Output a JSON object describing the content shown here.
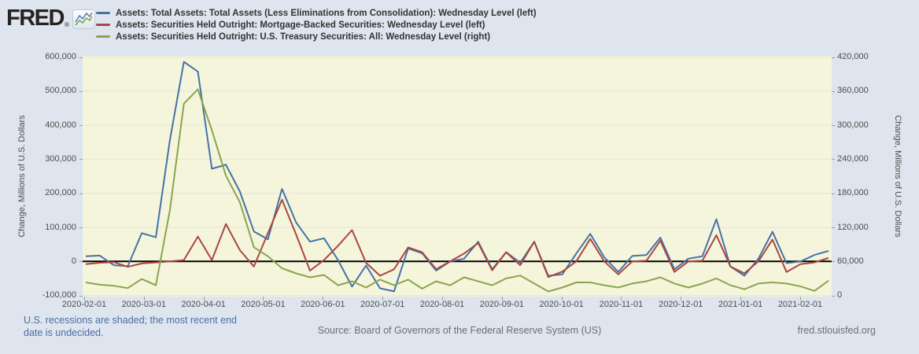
{
  "header": {
    "logo_text": "FRED",
    "registered_mark": "®",
    "legend": [
      {
        "id": "total-assets",
        "label": "Assets: Total Assets: Total Assets (Less Eliminations from Consolidation): Wednesday Level (left)",
        "color": "#4572a7"
      },
      {
        "id": "mbs",
        "label": "Assets: Securities Held Outright: Mortgage-Backed Securities: Wednesday Level (left)",
        "color": "#aa4643"
      },
      {
        "id": "treasuries",
        "label": "Assets: Securities Held Outright: U.S. Treasury Securities: All: Wednesday Level (right)",
        "color": "#89a54e"
      }
    ]
  },
  "chart_data": {
    "type": "line",
    "title": "",
    "x": [
      "2020-02-05",
      "2020-02-12",
      "2020-02-19",
      "2020-02-26",
      "2020-03-04",
      "2020-03-11",
      "2020-03-18",
      "2020-03-25",
      "2020-04-01",
      "2020-04-08",
      "2020-04-15",
      "2020-04-22",
      "2020-04-29",
      "2020-05-06",
      "2020-05-13",
      "2020-05-20",
      "2020-05-27",
      "2020-06-03",
      "2020-06-10",
      "2020-06-17",
      "2020-06-24",
      "2020-07-01",
      "2020-07-08",
      "2020-07-15",
      "2020-07-22",
      "2020-07-29",
      "2020-08-05",
      "2020-08-12",
      "2020-08-19",
      "2020-08-26",
      "2020-09-02",
      "2020-09-09",
      "2020-09-16",
      "2020-09-23",
      "2020-09-30",
      "2020-10-07",
      "2020-10-14",
      "2020-10-21",
      "2020-10-28",
      "2020-11-04",
      "2020-11-11",
      "2020-11-18",
      "2020-11-25",
      "2020-12-02",
      "2020-12-09",
      "2020-12-16",
      "2020-12-23",
      "2020-12-30",
      "2021-01-06",
      "2021-01-13",
      "2021-01-20",
      "2021-01-27",
      "2021-02-03",
      "2021-02-10"
    ],
    "series": [
      {
        "id": "total-assets",
        "name": "Assets: Total Assets: Total Assets (Less Eliminations from Consolidation): Wednesday Level",
        "axis": "left",
        "color": "#4572a7",
        "values": [
          15000,
          17000,
          -11000,
          -14000,
          83000,
          71000,
          356000,
          586000,
          557000,
          272000,
          284000,
          205000,
          88000,
          65000,
          213000,
          115000,
          58000,
          68000,
          4000,
          -74000,
          -12000,
          -79000,
          -88000,
          38000,
          24000,
          -27000,
          0,
          8000,
          58000,
          -23000,
          27000,
          -4000,
          58000,
          -42000,
          -38000,
          23000,
          81000,
          12000,
          -31000,
          16000,
          19000,
          70000,
          -23000,
          8000,
          15000,
          124000,
          -15000,
          -42000,
          8000,
          87000,
          -5000,
          0,
          19000,
          31000
        ]
      },
      {
        "id": "mbs",
        "name": "Assets: Securities Held Outright: Mortgage-Backed Securities: Wednesday Level",
        "axis": "left",
        "color": "#aa4643",
        "values": [
          -8000,
          -4000,
          -2000,
          -16000,
          -6000,
          -3000,
          0,
          4000,
          73000,
          4000,
          110000,
          33000,
          -15000,
          83000,
          181000,
          80000,
          -27000,
          4000,
          46000,
          92000,
          -4000,
          -42000,
          -23000,
          41000,
          27000,
          -23000,
          0,
          23000,
          54000,
          -26000,
          27000,
          -11000,
          58000,
          -46000,
          -30000,
          0,
          66000,
          0,
          -38000,
          0,
          2000,
          61000,
          -31000,
          0,
          2000,
          77000,
          -15000,
          -35000,
          0,
          64000,
          -31000,
          -8000,
          -3000,
          10000
        ]
      },
      {
        "id": "treasuries",
        "name": "Assets: Securities Held Outright: U.S. Treasury Securities: All: Wednesday Level",
        "axis": "right",
        "color": "#89a54e",
        "values": [
          23000,
          19000,
          17000,
          13000,
          29000,
          18000,
          150000,
          338000,
          363000,
          291000,
          211000,
          164000,
          85000,
          69000,
          48000,
          39000,
          32000,
          36000,
          18000,
          25000,
          14000,
          28000,
          18000,
          28000,
          12000,
          25000,
          18000,
          32000,
          25000,
          18000,
          30000,
          35000,
          21000,
          7000,
          14000,
          23000,
          23000,
          18000,
          14000,
          21000,
          25000,
          32000,
          21000,
          14000,
          21000,
          30000,
          18000,
          11000,
          21000,
          23000,
          21000,
          16000,
          8000,
          26000
        ]
      }
    ],
    "left_axis": {
      "label": "Change, Millions of U.S. Dollars",
      "min": -100000,
      "max": 600000,
      "ticks": [
        "600,000",
        "500,000",
        "400,000",
        "300,000",
        "200,000",
        "100,000",
        "0",
        "-100,000"
      ]
    },
    "right_axis": {
      "label": "Change, Millions of U.S. Dollars",
      "min": 0,
      "max": 420000,
      "ticks": [
        "420,000",
        "360,000",
        "300,000",
        "240,000",
        "180,000",
        "120,000",
        "60,000",
        "0"
      ]
    },
    "x_ticks": [
      "2020-02-01",
      "2020-03-01",
      "2020-04-01",
      "2020-05-01",
      "2020-06-01",
      "2020-07-01",
      "2020-08-01",
      "2020-09-01",
      "2020-10-01",
      "2020-11-01",
      "2020-12-01",
      "2021-01-01",
      "2021-02-01"
    ],
    "zero_line": true,
    "grid": true,
    "plot_bg": "#f5f5dc",
    "grid_color": "#e4e4e0",
    "zero_line_color": "#000000",
    "legend_position": "top"
  },
  "footer": {
    "recession_note": "U.S. recessions are shaded; the most recent end date is undecided.",
    "source": "Source: Board of Governors of the Federal Reserve System (US)",
    "site": "fred.stlouisfed.org"
  }
}
